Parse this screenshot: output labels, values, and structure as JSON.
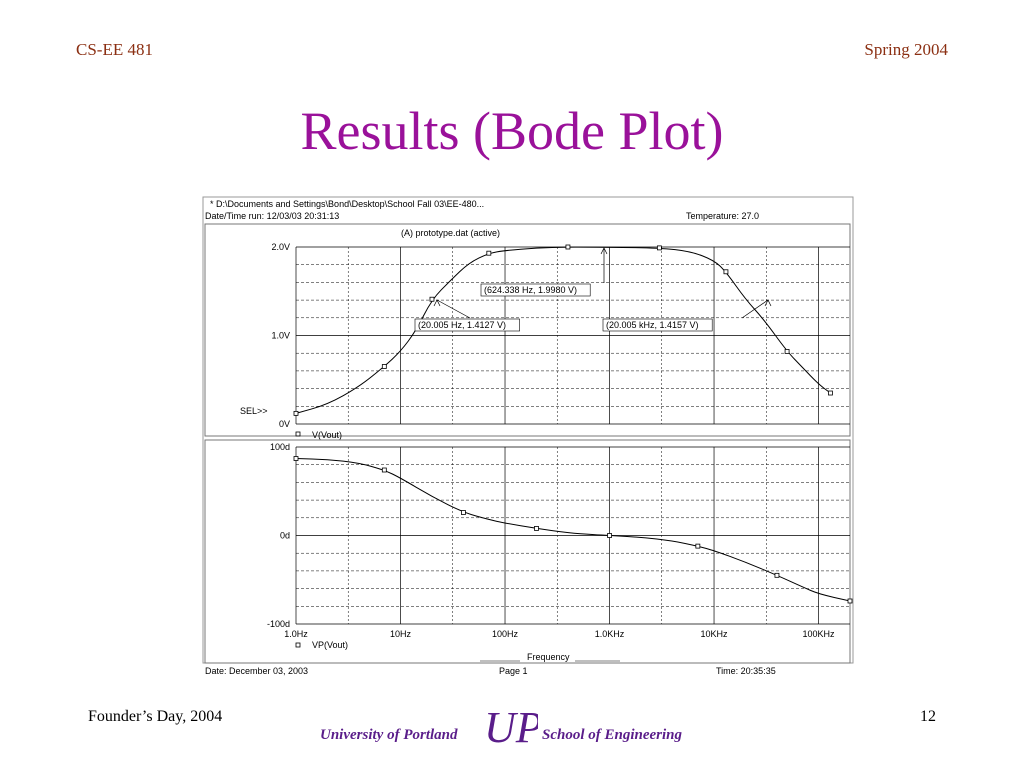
{
  "slide": {
    "header_left": "CS-EE 481",
    "header_right": "Spring 2004",
    "title": "Results (Bode Plot)",
    "footer_left": "Founder’s Day, 2004",
    "page_number": "12",
    "logo_left": "University of Portland",
    "logo_right": "School of Engineering",
    "logo_mark": "UP"
  },
  "colors": {
    "title": "#9a119a",
    "header": "#8b2f12",
    "logo": "#5a1d8a"
  },
  "plot": {
    "file": "* D:\\Documents and Settings\\Bond\\Desktop\\School Fall 03\\EE-480...",
    "date_time_run": "Date/Time run: 12/03/03 20:31:13",
    "temperature": "Temperature: 27.0",
    "section_label": "(A) prototype.dat (active)",
    "sel_label": "SEL>>",
    "footer_date": "Date: December 03, 2003",
    "footer_page": "Page 1",
    "footer_time": "Time: 20:35:35",
    "xlabel": "Frequency"
  },
  "chart_data": [
    {
      "type": "line",
      "name": "magnitude",
      "x_scale": "log",
      "xlim": [
        1,
        200000
      ],
      "ylim": [
        0,
        2.0
      ],
      "ytick_labels": [
        "2.0V",
        "1.0V",
        "0V"
      ],
      "ytick_values": [
        2.0,
        1.0,
        0
      ],
      "series": [
        {
          "name": "V(Vout)",
          "x": [
            1,
            2,
            4,
            7,
            10,
            14,
            20,
            30,
            45,
            70,
            100,
            200,
            400,
            624,
            1000,
            3000,
            6000,
            10000,
            13000,
            20000,
            30000,
            50000,
            70000,
            100000,
            130000
          ],
          "values": [
            0.12,
            0.22,
            0.42,
            0.65,
            0.82,
            1.05,
            1.41,
            1.62,
            1.82,
            1.93,
            1.96,
            1.99,
            2.0,
            1.998,
            1.997,
            1.99,
            1.95,
            1.85,
            1.72,
            1.41,
            1.18,
            0.82,
            0.64,
            0.45,
            0.35
          ]
        }
      ],
      "annotations": [
        "(624.338 Hz, 1.9980 V)",
        "(20.005 Hz, 1.4127 V)",
        "(20.005 kHz, 1.4157 V)"
      ]
    },
    {
      "type": "line",
      "name": "phase",
      "x_scale": "log",
      "xlim": [
        1,
        200000
      ],
      "ylim": [
        -100,
        100
      ],
      "ytick_labels": [
        "100d",
        "0d",
        "-100d"
      ],
      "ytick_values": [
        100,
        0,
        -100
      ],
      "xtick_labels": [
        "1.0Hz",
        "10Hz",
        "100Hz",
        "1.0KHz",
        "10KHz",
        "100KHz"
      ],
      "xtick_values": [
        1,
        10,
        100,
        1000,
        10000,
        100000
      ],
      "series": [
        {
          "name": "VP(Vout)",
          "x": [
            1,
            2,
            4,
            7,
            10,
            20,
            40,
            70,
            100,
            200,
            400,
            700,
            1000,
            2000,
            4000,
            7000,
            10000,
            20000,
            40000,
            70000,
            100000,
            200000
          ],
          "values": [
            87,
            86,
            82,
            74,
            65,
            44,
            26,
            18,
            14,
            8,
            3,
            1,
            0,
            -2,
            -6,
            -12,
            -17,
            -30,
            -45,
            -58,
            -66,
            -74
          ]
        }
      ]
    }
  ]
}
